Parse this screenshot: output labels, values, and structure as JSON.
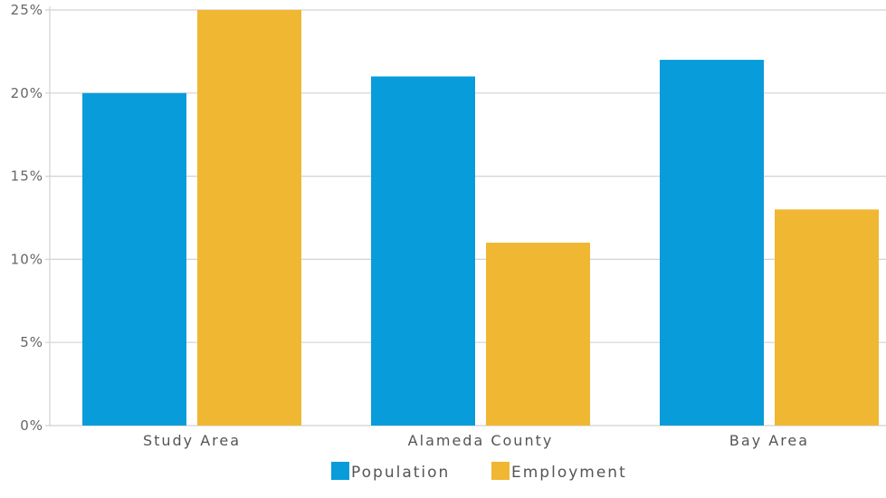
{
  "chart_data": {
    "type": "bar",
    "categories": [
      "Study Area",
      "Alameda County",
      "Bay Area"
    ],
    "series": [
      {
        "name": "Population",
        "values": [
          20,
          21,
          22
        ],
        "color": "#089CDA"
      },
      {
        "name": "Employment",
        "values": [
          25,
          11,
          13
        ],
        "color": "#F0B733"
      }
    ],
    "ylim": [
      0,
      25
    ],
    "yticks": [
      0,
      5,
      10,
      15,
      20,
      25
    ],
    "ytick_labels": [
      "0%",
      "5%",
      "10%",
      "15%",
      "20%",
      "25%"
    ],
    "grid": true,
    "legend_position": "bottom-center",
    "title": "",
    "xlabel": "",
    "ylabel": ""
  }
}
